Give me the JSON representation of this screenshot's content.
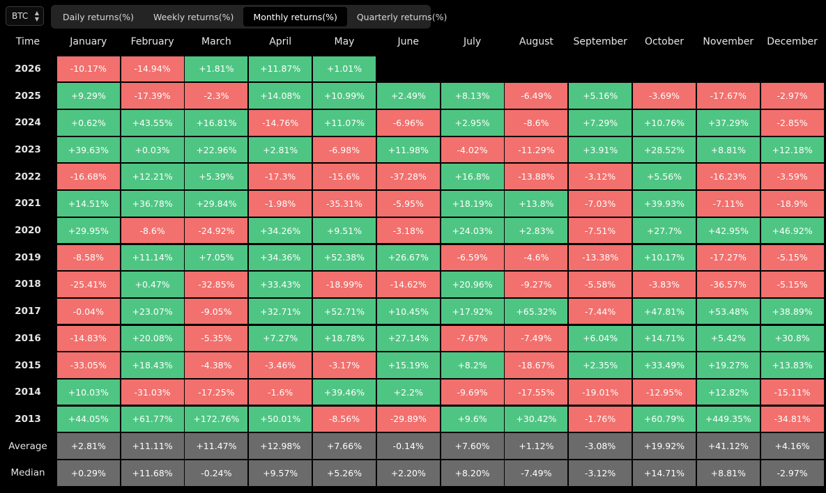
{
  "asset_selector": {
    "value": "BTC"
  },
  "tabs": [
    {
      "label": "Daily returns(%)",
      "active": false
    },
    {
      "label": "Weekly returns(%)",
      "active": false
    },
    {
      "label": "Monthly returns(%)",
      "active": true
    },
    {
      "label": "Quarterly returns(%)",
      "active": false
    }
  ],
  "table": {
    "corner_label": "Time",
    "months": [
      "January",
      "February",
      "March",
      "April",
      "May",
      "June",
      "July",
      "August",
      "September",
      "October",
      "November",
      "December"
    ],
    "rows": [
      {
        "label": "2026",
        "values": [
          "-10.17%",
          "-14.94%",
          "+1.81%",
          "+11.87%",
          "+1.01%",
          "",
          "",
          "",
          "",
          "",
          "",
          ""
        ]
      },
      {
        "label": "2025",
        "values": [
          "+9.29%",
          "-17.39%",
          "-2.3%",
          "+14.08%",
          "+10.99%",
          "+2.49%",
          "+8.13%",
          "-6.49%",
          "+5.16%",
          "-3.69%",
          "-17.67%",
          "-2.97%"
        ]
      },
      {
        "label": "2024",
        "values": [
          "+0.62%",
          "+43.55%",
          "+16.81%",
          "-14.76%",
          "+11.07%",
          "-6.96%",
          "+2.95%",
          "-8.6%",
          "+7.29%",
          "+10.76%",
          "+37.29%",
          "-2.85%"
        ]
      },
      {
        "label": "2023",
        "values": [
          "+39.63%",
          "+0.03%",
          "+22.96%",
          "+2.81%",
          "-6.98%",
          "+11.98%",
          "-4.02%",
          "-11.29%",
          "+3.91%",
          "+28.52%",
          "+8.81%",
          "+12.18%"
        ]
      },
      {
        "label": "2022",
        "values": [
          "-16.68%",
          "+12.21%",
          "+5.39%",
          "-17.3%",
          "-15.6%",
          "-37.28%",
          "+16.8%",
          "-13.88%",
          "-3.12%",
          "+5.56%",
          "-16.23%",
          "-3.59%"
        ]
      },
      {
        "label": "2021",
        "values": [
          "+14.51%",
          "+36.78%",
          "+29.84%",
          "-1.98%",
          "-35.31%",
          "-5.95%",
          "+18.19%",
          "+13.8%",
          "-7.03%",
          "+39.93%",
          "-7.11%",
          "-18.9%"
        ]
      },
      {
        "label": "2020",
        "values": [
          "+29.95%",
          "-8.6%",
          "-24.92%",
          "+34.26%",
          "+9.51%",
          "-3.18%",
          "+24.03%",
          "+2.83%",
          "-7.51%",
          "+27.7%",
          "+42.95%",
          "+46.92%"
        ]
      },
      {
        "label": "2019",
        "values": [
          "-8.58%",
          "+11.14%",
          "+7.05%",
          "+34.36%",
          "+52.38%",
          "+26.67%",
          "-6.59%",
          "-4.6%",
          "-13.38%",
          "+10.17%",
          "-17.27%",
          "-5.15%"
        ]
      },
      {
        "label": "2018",
        "values": [
          "-25.41%",
          "+0.47%",
          "-32.85%",
          "+33.43%",
          "-18.99%",
          "-14.62%",
          "+20.96%",
          "-9.27%",
          "-5.58%",
          "-3.83%",
          "-36.57%",
          "-5.15%"
        ]
      },
      {
        "label": "2017",
        "values": [
          "-0.04%",
          "+23.07%",
          "-9.05%",
          "+32.71%",
          "+52.71%",
          "+10.45%",
          "+17.92%",
          "+65.32%",
          "-7.44%",
          "+47.81%",
          "+53.48%",
          "+38.89%"
        ]
      },
      {
        "label": "2016",
        "values": [
          "-14.83%",
          "+20.08%",
          "-5.35%",
          "+7.27%",
          "+18.78%",
          "+27.14%",
          "-7.67%",
          "-7.49%",
          "+6.04%",
          "+14.71%",
          "+5.42%",
          "+30.8%"
        ]
      },
      {
        "label": "2015",
        "values": [
          "-33.05%",
          "+18.43%",
          "-4.38%",
          "-3.46%",
          "-3.17%",
          "+15.19%",
          "+8.2%",
          "-18.67%",
          "+2.35%",
          "+33.49%",
          "+19.27%",
          "+13.83%"
        ]
      },
      {
        "label": "2014",
        "values": [
          "+10.03%",
          "-31.03%",
          "-17.25%",
          "-1.6%",
          "+39.46%",
          "+2.2%",
          "-9.69%",
          "-17.55%",
          "-19.01%",
          "-12.95%",
          "+12.82%",
          "-15.11%"
        ]
      },
      {
        "label": "2013",
        "values": [
          "+44.05%",
          "+61.77%",
          "+172.76%",
          "+50.01%",
          "-8.56%",
          "-29.89%",
          "+9.6%",
          "+30.42%",
          "-1.76%",
          "+60.79%",
          "+449.35%",
          "-34.81%"
        ]
      }
    ],
    "stat_rows": [
      {
        "label": "Average",
        "values": [
          "+2.81%",
          "+11.11%",
          "+11.47%",
          "+12.98%",
          "+7.66%",
          "-0.14%",
          "+7.60%",
          "+1.12%",
          "-3.08%",
          "+19.92%",
          "+41.12%",
          "+4.16%"
        ]
      },
      {
        "label": "Median",
        "values": [
          "+0.29%",
          "+11.68%",
          "-0.24%",
          "+9.57%",
          "+5.26%",
          "+2.20%",
          "+8.20%",
          "-7.49%",
          "-3.12%",
          "+14.71%",
          "+8.81%",
          "-2.97%"
        ]
      }
    ]
  },
  "colors": {
    "positive": "#4fc583",
    "negative": "#f2706d",
    "stat": "#6b6b6b",
    "background": "#000000"
  }
}
